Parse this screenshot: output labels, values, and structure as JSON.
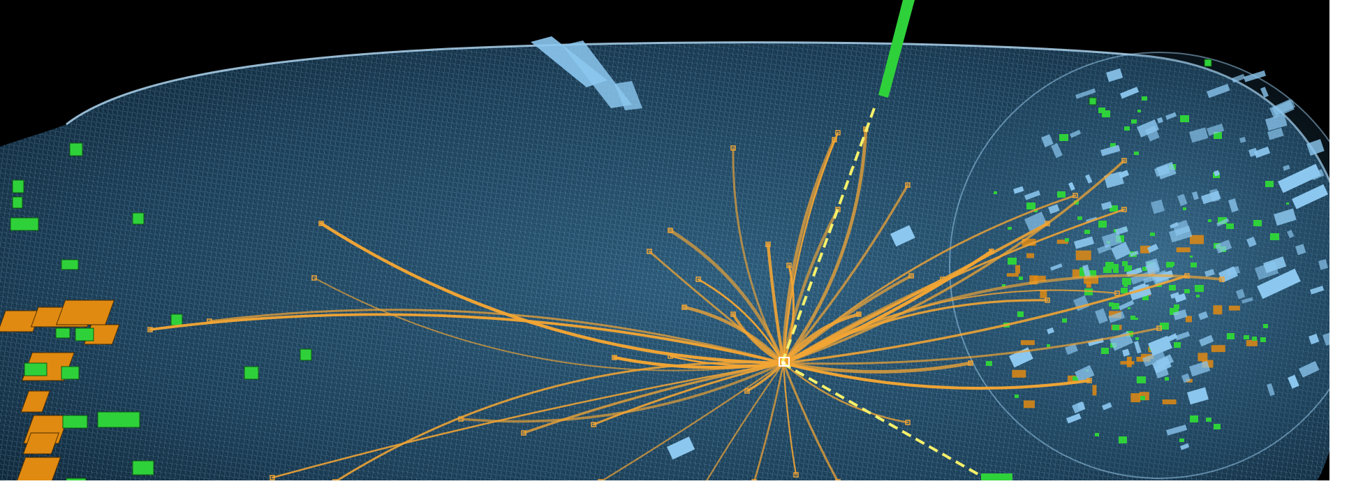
{
  "scene": {
    "subject": "particle-collision-event-display",
    "colors": {
      "background": "#000000",
      "frame": "#ffffff",
      "detector_mesh": "#8fc8ee",
      "detector_fill": "#1c3f57",
      "tracks": "#f2a534",
      "calorimeter_towers": "#e08a12",
      "muon_hits": "#2fd13a",
      "endcap_blocks": "#8cc7ef",
      "missing_energy": "#f6f06a",
      "vertex": "#ffffff"
    },
    "icons": [
      "detector-barrel",
      "particle-track",
      "muon-chamber-hit",
      "calorimeter-tower",
      "missing-energy-line",
      "collision-vertex"
    ]
  }
}
